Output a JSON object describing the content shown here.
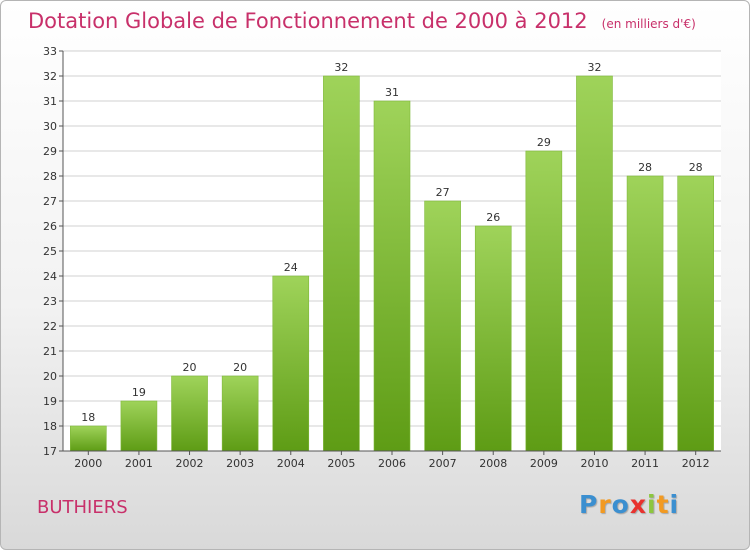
{
  "chart_data": {
    "type": "bar",
    "title": "Dotation Globale de Fonctionnement de 2000 à 2012",
    "unit_label": "(en milliers d'€)",
    "categories": [
      "2000",
      "2001",
      "2002",
      "2003",
      "2004",
      "2005",
      "2006",
      "2007",
      "2008",
      "2009",
      "2010",
      "2011",
      "2012"
    ],
    "values": [
      18,
      19,
      20,
      20,
      24,
      32,
      31,
      27,
      26,
      29,
      32,
      28,
      28
    ],
    "ylim": [
      17,
      33
    ],
    "yticks": [
      17,
      18,
      19,
      20,
      21,
      22,
      23,
      24,
      25,
      26,
      27,
      28,
      29,
      30,
      31,
      32,
      33
    ],
    "grid": true,
    "xlabel": "",
    "ylabel": ""
  },
  "commune_name": "BUTHIERS",
  "brand": {
    "letters": [
      "P",
      "r",
      "o",
      "x",
      "i",
      "t",
      "i"
    ],
    "colors": [
      "#3b8fd0",
      "#f29a22",
      "#3b8fd0",
      "#e8322e",
      "#8cc63f",
      "#f29a22",
      "#3b8fd0"
    ]
  },
  "colors": {
    "title": "#c8306a",
    "bar_light": "#9fd35a",
    "bar_dark": "#5e9c15",
    "grid": "#d0d0d0",
    "axis": "#555555"
  }
}
